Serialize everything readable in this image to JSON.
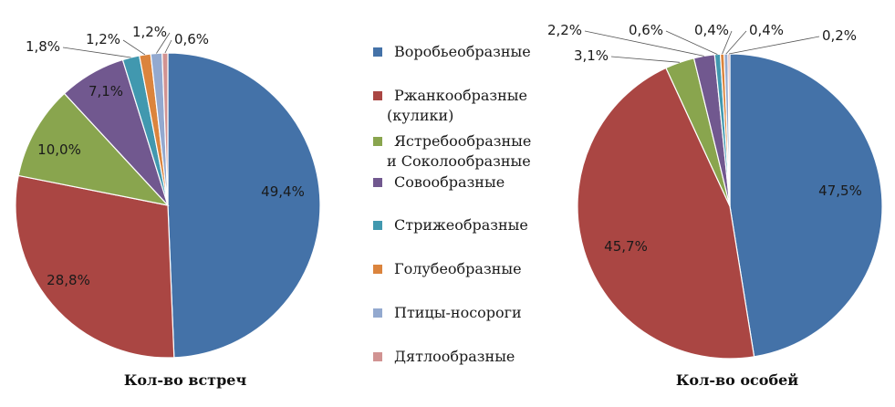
{
  "legend": [
    {
      "lines": [
        "Воробьеобразные"
      ],
      "color": "#4472A8"
    },
    {
      "lines": [
        "Ржанкообразные",
        "(кулики)"
      ],
      "color": "#AA4643"
    },
    {
      "lines": [
        "Ястребообразные",
        "и Соколообразные"
      ],
      "color": "#89A54E"
    },
    {
      "lines": [
        "Совообразные"
      ],
      "color": "#71588F"
    },
    {
      "lines": [
        "Стрижеобразные"
      ],
      "color": "#4198AF"
    },
    {
      "lines": [
        "Голубеобразные"
      ],
      "color": "#DB843D"
    },
    {
      "lines": [
        "Птицы-носороги"
      ],
      "color": "#93A9CF"
    },
    {
      "lines": [
        "Дятлообразные"
      ],
      "color": "#D19392"
    }
  ],
  "chart_data": [
    {
      "type": "pie",
      "title": "Кол-во встреч",
      "categories": [
        "Воробьеобразные",
        "Ржанкообразные (кулики)",
        "Ястребообразные и Соколообразные",
        "Совообразные",
        "Стрижеобразные",
        "Голубеобразные",
        "Птицы-носороги",
        "Дятлообразные"
      ],
      "values": [
        49.4,
        28.8,
        10.0,
        7.1,
        1.8,
        1.2,
        1.2,
        0.6
      ],
      "labels": [
        "49,4%",
        "28,8%",
        "10,0%",
        "7,1%",
        "1,8%",
        "1,2%",
        "1,2%",
        "0,6%"
      ]
    },
    {
      "type": "pie",
      "title": "Кол-во особей",
      "categories": [
        "Воробьеобразные",
        "Ржанкообразные (кулики)",
        "Ястребообразные и Соколообразные",
        "Совообразные",
        "Стрижеобразные",
        "Голубеобразные",
        "Птицы-носороги",
        "Дятлообразные"
      ],
      "values": [
        47.5,
        45.7,
        3.1,
        2.2,
        0.6,
        0.4,
        0.4,
        0.2
      ],
      "labels": [
        "47,5%",
        "45,7%",
        "3,1%",
        "2,2%",
        "0,6%",
        "0,4%",
        "0,4%",
        "0,2%"
      ]
    }
  ]
}
